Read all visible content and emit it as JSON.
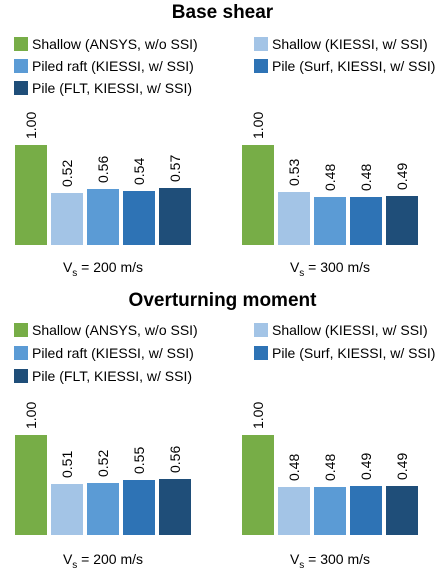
{
  "colors": {
    "Shallow (ANSYS, w/o SSI)": "#77ad47",
    "Shallow (KIESSI, w/ SSI)": "#a3c4e6",
    "Piled raft (KIESSI, w/ SSI)": "#5b9bd5",
    "Pile  (Surf, KIESSI, w/ SSI)": "#2e73b5",
    "Pile (FLT, KIESSI, w/ SSI)": "#1f4e79"
  },
  "chart_data": [
    {
      "type": "bar",
      "title": "Base shear",
      "series": [
        {
          "name": "Shallow (ANSYS, w/o SSI)",
          "values": [
            1.0,
            1.0
          ]
        },
        {
          "name": "Shallow (KIESSI, w/ SSI)",
          "values": [
            0.52,
            0.53
          ]
        },
        {
          "name": "Piled raft (KIESSI, w/ SSI)",
          "values": [
            0.56,
            0.48
          ]
        },
        {
          "name": "Pile  (Surf, KIESSI, w/ SSI)",
          "values": [
            0.54,
            0.48
          ]
        },
        {
          "name": "Pile (FLT, KIESSI, w/ SSI)",
          "values": [
            0.57,
            0.49
          ]
        }
      ],
      "groups": [
        {
          "label_pre": "V",
          "label_sub": "s",
          "label_post": " = 200 m/s"
        },
        {
          "label_pre": "V",
          "label_sub": "s",
          "label_post": " = 300 m/s"
        }
      ],
      "legend": "top, two columns"
    },
    {
      "type": "bar",
      "title": "Overturning moment",
      "series": [
        {
          "name": "Shallow (ANSYS, w/o SSI)",
          "values": [
            1.0,
            1.0
          ]
        },
        {
          "name": "Shallow (KIESSI, w/ SSI)",
          "values": [
            0.51,
            0.48
          ]
        },
        {
          "name": "Piled raft (KIESSI, w/ SSI)",
          "values": [
            0.52,
            0.48
          ]
        },
        {
          "name": "Pile (Surf, KIESSI, w/ SSI)",
          "values": [
            0.55,
            0.49
          ]
        },
        {
          "name": "Pile (FLT, KIESSI, w/ SSI)",
          "values": [
            0.56,
            0.49
          ]
        }
      ],
      "groups": [
        {
          "label_pre": "V",
          "label_sub": "s",
          "label_post": " = 200 m/s"
        },
        {
          "label_pre": "V",
          "label_sub": "s",
          "label_post": " = 300 m/s"
        }
      ],
      "legend": "top, two columns"
    }
  ]
}
